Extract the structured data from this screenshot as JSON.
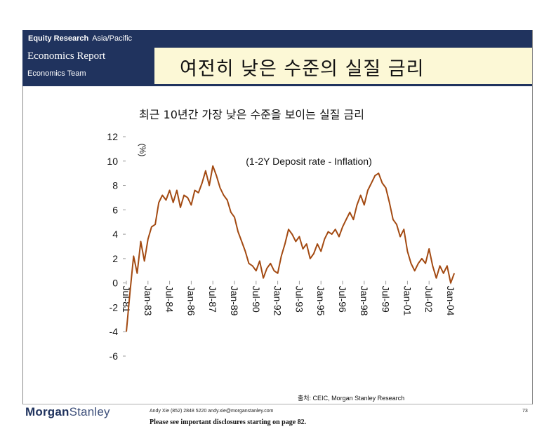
{
  "header": {
    "section": "Equity Research",
    "region": "Asia/Pacific",
    "report": "Economics Report",
    "team": "Economics Team",
    "title": "여전히 낮은 수준의 실질 금리"
  },
  "chart_data": {
    "type": "line",
    "title": "최근 10년간 가장 낮은 수준을 보이는 실질 금리",
    "annotation": "(1-2Y Deposit rate - Inflation)",
    "ylabel": "(%)",
    "xlabel": "",
    "ylim": [
      -6,
      12
    ],
    "yticks": [
      "12",
      "10",
      "8",
      "6",
      "4",
      "2",
      "0",
      "-2",
      "-4",
      "-6"
    ],
    "xticks": [
      "Jul-81",
      "Jan-83",
      "Jul-84",
      "Jan-86",
      "Jul-87",
      "Jan-89",
      "Jul-90",
      "Jan-92",
      "Jul-93",
      "Jan-95",
      "Jul-96",
      "Jan-98",
      "Jul-99",
      "Jan-01",
      "Jul-02",
      "Jan-04"
    ],
    "grid": false,
    "series": [
      {
        "name": "",
        "color": "#a34a12",
        "points": [
          [
            "Jul-81",
            -4.0
          ],
          [
            "Oct-81",
            -0.8
          ],
          [
            "Jan-82",
            2.2
          ],
          [
            "Apr-82",
            0.8
          ],
          [
            "Jul-82",
            3.4
          ],
          [
            "Oct-82",
            1.8
          ],
          [
            "Jan-83",
            3.6
          ],
          [
            "Apr-83",
            4.6
          ],
          [
            "Jul-83",
            4.8
          ],
          [
            "Oct-83",
            6.6
          ],
          [
            "Jan-84",
            7.2
          ],
          [
            "Apr-84",
            6.8
          ],
          [
            "Jul-84",
            7.6
          ],
          [
            "Oct-84",
            6.6
          ],
          [
            "Jan-85",
            7.6
          ],
          [
            "Apr-85",
            6.2
          ],
          [
            "Jul-85",
            7.2
          ],
          [
            "Oct-85",
            7.0
          ],
          [
            "Jan-86",
            6.4
          ],
          [
            "Apr-86",
            7.6
          ],
          [
            "Jul-86",
            7.4
          ],
          [
            "Oct-86",
            8.2
          ],
          [
            "Jan-87",
            9.2
          ],
          [
            "Apr-87",
            8.0
          ],
          [
            "Jul-87",
            9.6
          ],
          [
            "Oct-87",
            8.8
          ],
          [
            "Jan-88",
            7.8
          ],
          [
            "Apr-88",
            7.2
          ],
          [
            "Jul-88",
            6.8
          ],
          [
            "Oct-88",
            5.8
          ],
          [
            "Jan-89",
            5.4
          ],
          [
            "Apr-89",
            4.2
          ],
          [
            "Jul-89",
            3.4
          ],
          [
            "Oct-89",
            2.6
          ],
          [
            "Jan-90",
            1.6
          ],
          [
            "Apr-90",
            1.4
          ],
          [
            "Jul-90",
            1.0
          ],
          [
            "Oct-90",
            1.8
          ],
          [
            "Jan-91",
            0.4
          ],
          [
            "Apr-91",
            1.2
          ],
          [
            "Jul-91",
            1.6
          ],
          [
            "Oct-91",
            1.0
          ],
          [
            "Jan-92",
            0.8
          ],
          [
            "Apr-92",
            2.2
          ],
          [
            "Jul-92",
            3.2
          ],
          [
            "Oct-92",
            4.4
          ],
          [
            "Jan-93",
            4.0
          ],
          [
            "Apr-93",
            3.4
          ],
          [
            "Jul-93",
            3.8
          ],
          [
            "Oct-93",
            2.8
          ],
          [
            "Jan-94",
            3.2
          ],
          [
            "Apr-94",
            2.0
          ],
          [
            "Jul-94",
            2.4
          ],
          [
            "Oct-94",
            3.2
          ],
          [
            "Jan-95",
            2.6
          ],
          [
            "Apr-95",
            3.6
          ],
          [
            "Jul-95",
            4.2
          ],
          [
            "Oct-95",
            4.0
          ],
          [
            "Jan-96",
            4.4
          ],
          [
            "Apr-96",
            3.8
          ],
          [
            "Jul-96",
            4.6
          ],
          [
            "Oct-96",
            5.2
          ],
          [
            "Jan-97",
            5.8
          ],
          [
            "Apr-97",
            5.2
          ],
          [
            "Jul-97",
            6.4
          ],
          [
            "Oct-97",
            7.2
          ],
          [
            "Jan-98",
            6.4
          ],
          [
            "Apr-98",
            7.6
          ],
          [
            "Jul-98",
            8.2
          ],
          [
            "Oct-98",
            8.8
          ],
          [
            "Jan-99",
            9.0
          ],
          [
            "Apr-99",
            8.2
          ],
          [
            "Jul-99",
            7.8
          ],
          [
            "Oct-99",
            6.6
          ],
          [
            "Jan-00",
            5.2
          ],
          [
            "Apr-00",
            4.8
          ],
          [
            "Jul-00",
            3.8
          ],
          [
            "Oct-00",
            4.4
          ],
          [
            "Jan-01",
            2.6
          ],
          [
            "Apr-01",
            1.6
          ],
          [
            "Jul-01",
            1.0
          ],
          [
            "Oct-01",
            1.6
          ],
          [
            "Jan-02",
            2.0
          ],
          [
            "Apr-02",
            1.6
          ],
          [
            "Jul-02",
            2.8
          ],
          [
            "Oct-02",
            1.4
          ],
          [
            "Jan-03",
            0.4
          ],
          [
            "Apr-03",
            1.4
          ],
          [
            "Jul-03",
            0.8
          ],
          [
            "Oct-03",
            1.4
          ],
          [
            "Jan-04",
            0.0
          ],
          [
            "Apr-04",
            0.8
          ]
        ]
      }
    ]
  },
  "footer": {
    "source": "출처: CEIC, Morgan Stanley Research",
    "logo_morgan": "Morgan",
    "logo_stanley": "Stanley",
    "contact": "Andy Xie (852) 2848 5220 andy.xie@morganstanley.com",
    "disclosure": "Please see important disclosures starting on page 82.",
    "page_number": "73"
  }
}
